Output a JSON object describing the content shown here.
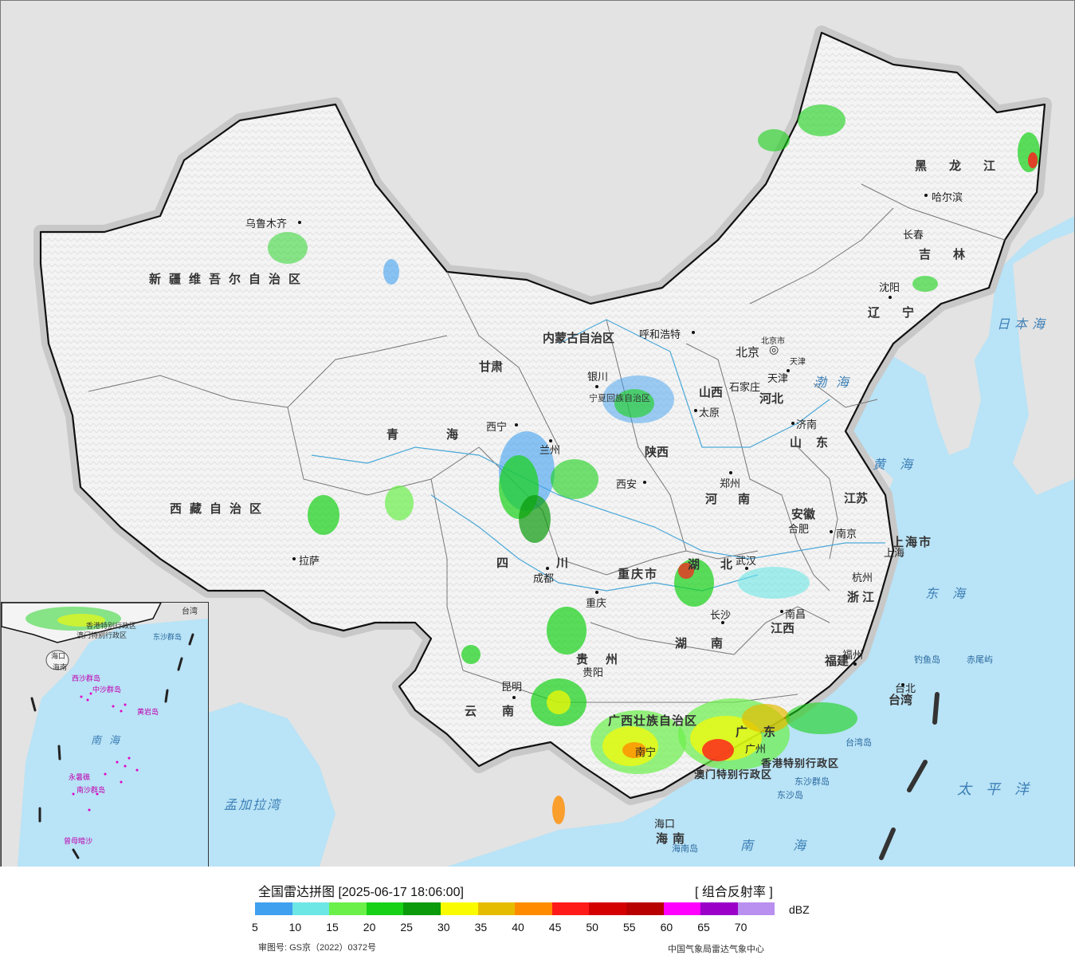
{
  "map": {
    "provinces": {
      "xinjiang": "新疆维吾尔自治区",
      "xizang": "西藏自治区",
      "qinghai": "青海",
      "gansu": "甘肃",
      "neimenggu": "内蒙古自治区",
      "heilongjiang": "黑龙江",
      "jilin": "吉林",
      "liaoning": "辽宁",
      "hebei": "河北",
      "shanxi": "山西",
      "shaanxi": "陕西",
      "ningxia": "宁夏回族自治区",
      "shandong": "山东",
      "henan": "河南",
      "jiangsu": "江苏",
      "anhui": "安徽",
      "shanghai": "上海市",
      "zhejiang": "浙江",
      "hubei": "湖北",
      "hunan": "湖南",
      "jiangxi": "江西",
      "fujian": "福建",
      "sichuan": "四川",
      "chongqing": "重庆市",
      "guizhou": "贵州",
      "yunnan": "云南",
      "guangxi": "广西壮族自治区",
      "guangdong": "广东",
      "hainan": "海南",
      "taiwan": "台湾",
      "hongkong": "香港特别行政区",
      "macau": "澳门特别行政区",
      "tianjin": "天津",
      "beijing_small": "北京市"
    },
    "cities": {
      "urumqi": "乌鲁木齐",
      "lhasa": "拉萨",
      "xining": "西宁",
      "lanzhou": "兰州",
      "yinchuan": "银川",
      "hohhot": "呼和浩特",
      "beijing": "北京",
      "tianjin": "天津",
      "shijiazhuang": "石家庄",
      "taiyuan": "太原",
      "jinan": "济南",
      "zhengzhou": "郑州",
      "xian": "西安",
      "harbin": "哈尔滨",
      "changchun": "长春",
      "shenyang": "沈阳",
      "hefei": "合肥",
      "nanjing": "南京",
      "shanghai": "上海",
      "hangzhou": "杭州",
      "wuhan": "武汉",
      "changsha": "长沙",
      "nanchang": "南昌",
      "fuzhou": "福州",
      "chengdu": "成都",
      "chongqing": "重庆",
      "guiyang": "贵阳",
      "kunming": "昆明",
      "nanning": "南宁",
      "guangzhou": "广州",
      "haikou": "海口",
      "taibei": "台北"
    },
    "seas": {
      "bohai": "渤海",
      "huanghai": "黄海",
      "donghai": "东海",
      "nanhai": "南海",
      "taipingyang": "太平洋",
      "ribenhai": "日本海",
      "mengjiala": "孟加拉湾"
    },
    "islands": {
      "diaoyu": "钓鱼岛",
      "chiwei": "赤尾屿",
      "taiwan_dao": "台湾岛",
      "dongsha_qundao": "东沙群岛",
      "dongsha_dao": "东沙岛",
      "hainan_dao": "海南岛"
    },
    "inset": {
      "labels": {
        "taiwan": "台湾",
        "hk": "香港特别行政区",
        "macau": "澳门特别行政区",
        "dongsha": "东沙群岛",
        "haikou": "海口",
        "hainan": "海南",
        "xisha": "西沙群岛",
        "zhongsha": "中沙群岛",
        "huangyan": "黄岩岛",
        "nanhai": "南海",
        "yongshu": "永暑礁",
        "nansha": "南沙群岛",
        "zengmu": "曾母暗沙"
      }
    }
  },
  "legend": {
    "title": "全国雷达拼图 [2025-06-17 18:06:00]",
    "product": "[ 组合反射率 ]",
    "unit": "dBZ",
    "colors": [
      "#3fa0f0",
      "#6de6e6",
      "#6bf04a",
      "#17d117",
      "#0b9a0b",
      "#fbfb00",
      "#e6bc00",
      "#ff8c00",
      "#ff1a1a",
      "#d40000",
      "#b90000",
      "#ff00ff",
      "#9a00c8",
      "#b98ff0"
    ],
    "ticks": [
      "5",
      "10",
      "15",
      "20",
      "25",
      "30",
      "35",
      "40",
      "45",
      "50",
      "55",
      "60",
      "65",
      "70"
    ],
    "approval": "审图号: GS京（2022）0372号",
    "credit": "中国气象局雷达气象中心"
  }
}
